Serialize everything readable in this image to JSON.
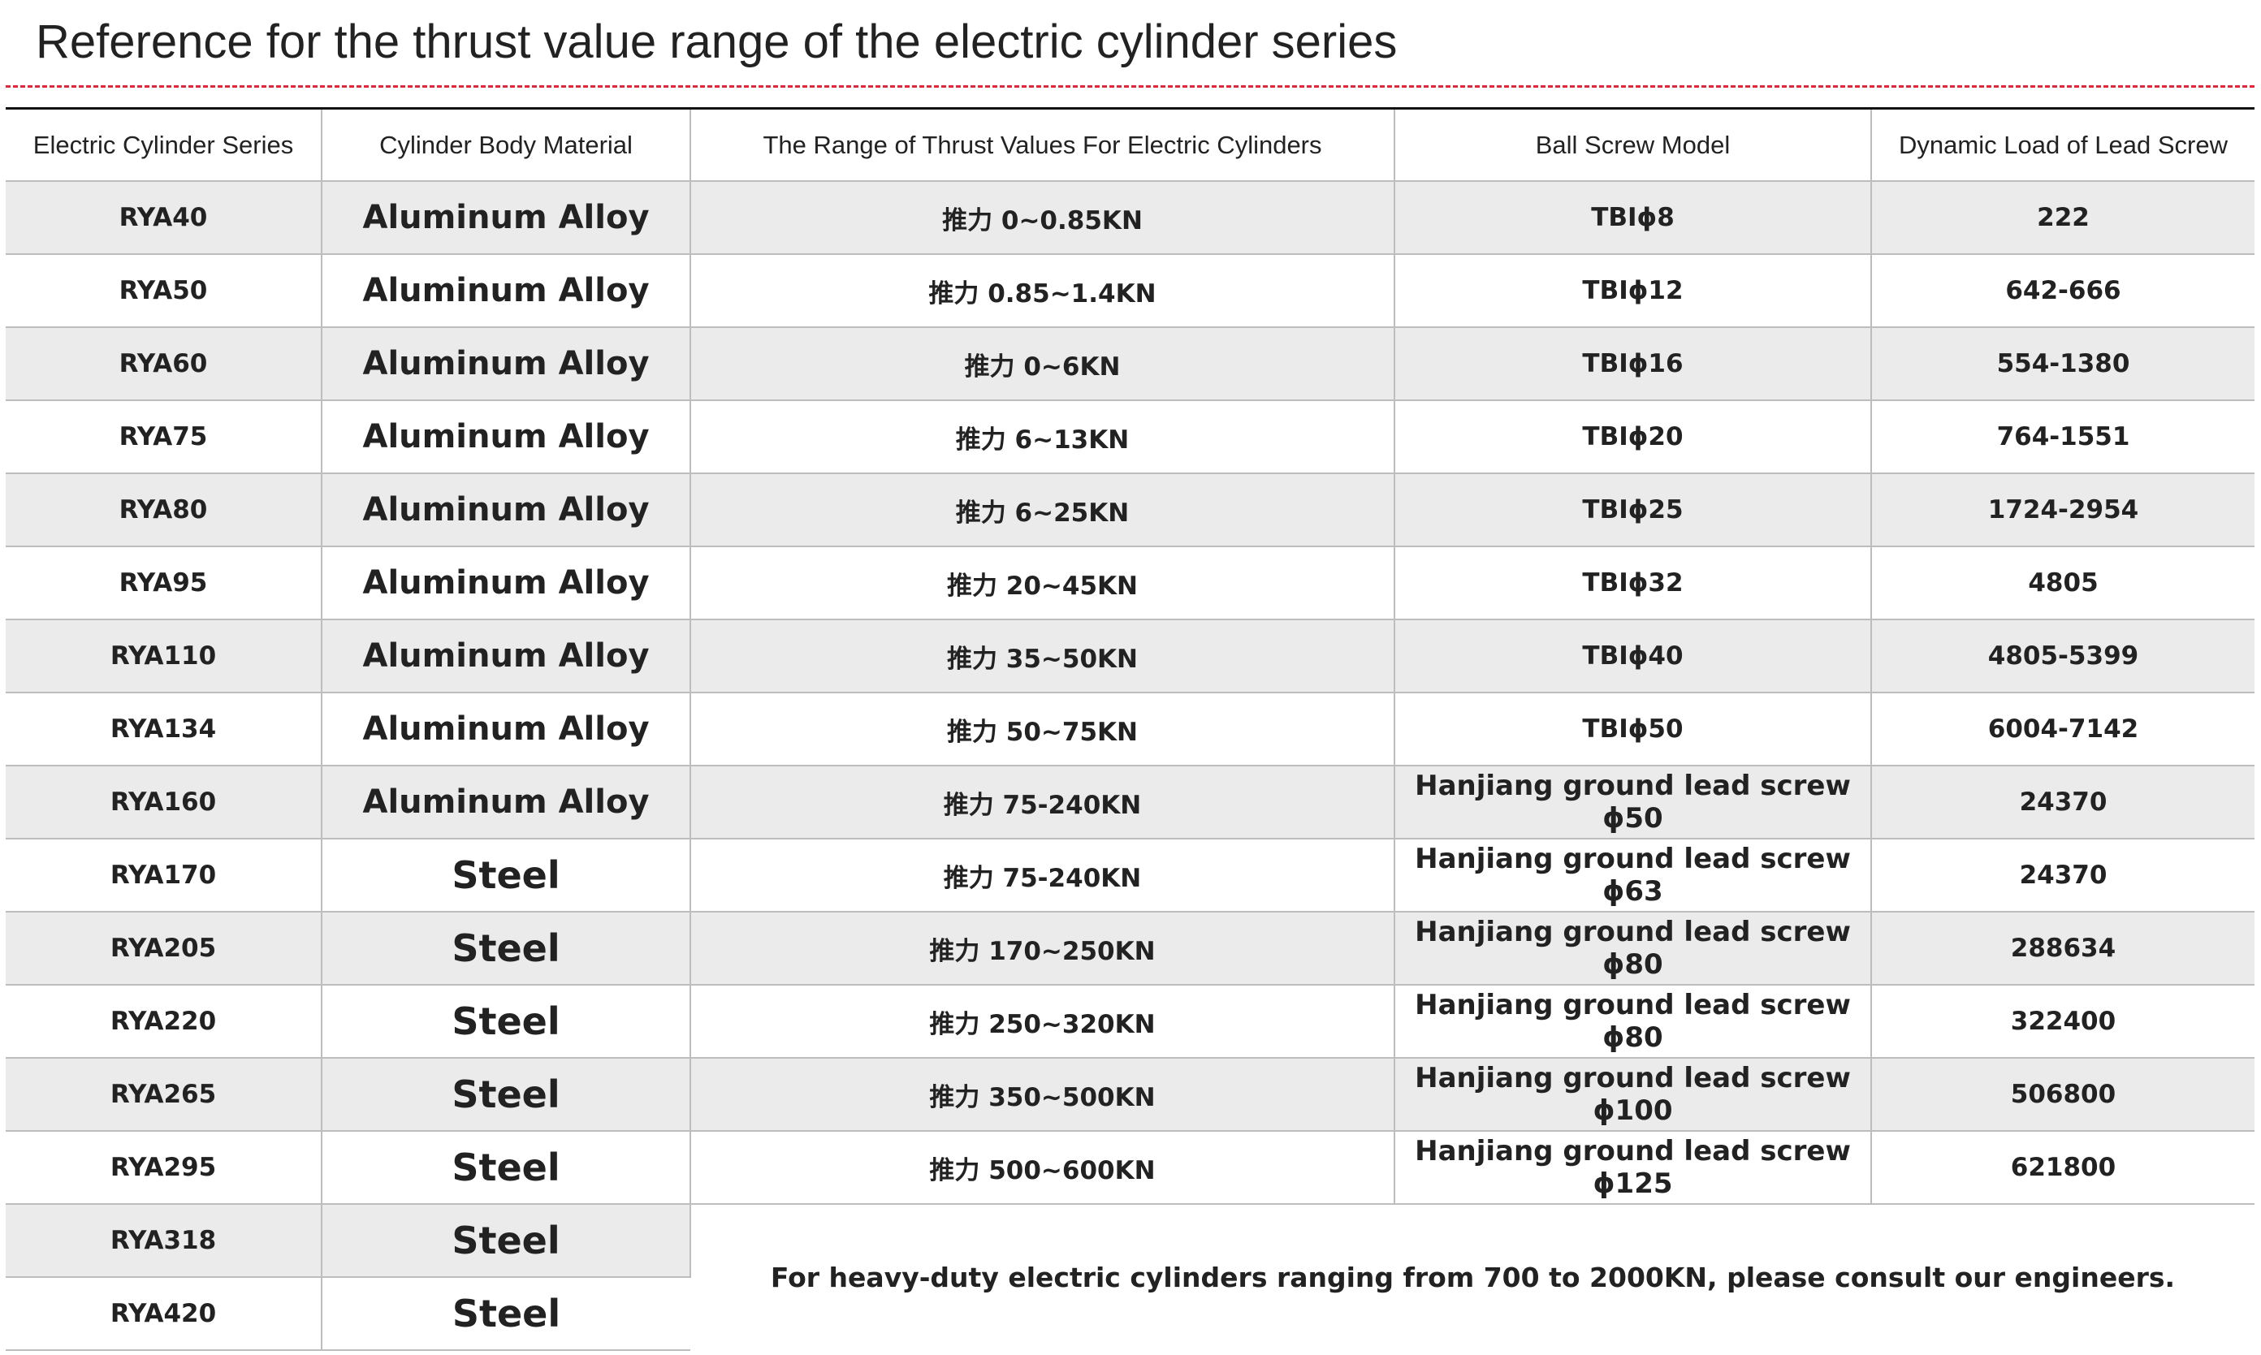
{
  "header": {
    "title": "Reference for the thrust value range of the electric cylinder series"
  },
  "table": {
    "headers": [
      "Electric Cylinder Series",
      "Cylinder Body Material",
      "The Range of Thrust Values For Electric Cylinders",
      "Ball Screw Model",
      "Dynamic Load of Lead Screw"
    ],
    "rows": [
      [
        "RYA40",
        "Aluminum Alloy",
        "推力 0~0.85KN",
        "TBIϕ8",
        "222"
      ],
      [
        "RYA50",
        "Aluminum Alloy",
        "推力 0.85~1.4KN",
        "TBIϕ12",
        "642-666"
      ],
      [
        "RYA60",
        "Aluminum Alloy",
        "推力 0~6KN",
        "TBIϕ16",
        "554-1380"
      ],
      [
        "RYA75",
        "Aluminum Alloy",
        "推力 6~13KN",
        "TBIϕ20",
        "764-1551"
      ],
      [
        "RYA80",
        "Aluminum Alloy",
        "推力 6~25KN",
        "TBIϕ25",
        "1724-2954"
      ],
      [
        "RYA95",
        "Aluminum Alloy",
        "推力 20~45KN",
        "TBIϕ32",
        "4805"
      ],
      [
        "RYA110",
        "Aluminum Alloy",
        "推力 35~50KN",
        "TBIϕ40",
        "4805-5399"
      ],
      [
        "RYA134",
        "Aluminum Alloy",
        "推力 50~75KN",
        "TBIϕ50",
        "6004-7142"
      ],
      [
        "RYA160",
        "Aluminum Alloy",
        "推力 75-240KN",
        "Hanjiang ground lead screw ϕ50",
        "24370"
      ],
      [
        "RYA170",
        "Steel",
        "推力 75-240KN",
        "Hanjiang ground lead screw ϕ63",
        "24370"
      ],
      [
        "RYA205",
        "Steel",
        "推力 170~250KN",
        "Hanjiang ground lead screw ϕ80",
        "288634"
      ],
      [
        "RYA220",
        "Steel",
        "推力 250~320KN",
        "Hanjiang ground lead screw ϕ80",
        "322400"
      ],
      [
        "RYA265",
        "Steel",
        "推力 350~500KN",
        "Hanjiang ground lead screw ϕ100",
        "506800"
      ],
      [
        "RYA295",
        "Steel",
        "推力 500~600KN",
        "Hanjiang ground lead screw ϕ125",
        "621800"
      ],
      [
        "RYA318",
        "Steel"
      ],
      [
        "RYA420",
        "Steel"
      ]
    ],
    "note": "For heavy-duty electric cylinders ranging from 700 to 2000KN, please consult our engineers."
  }
}
